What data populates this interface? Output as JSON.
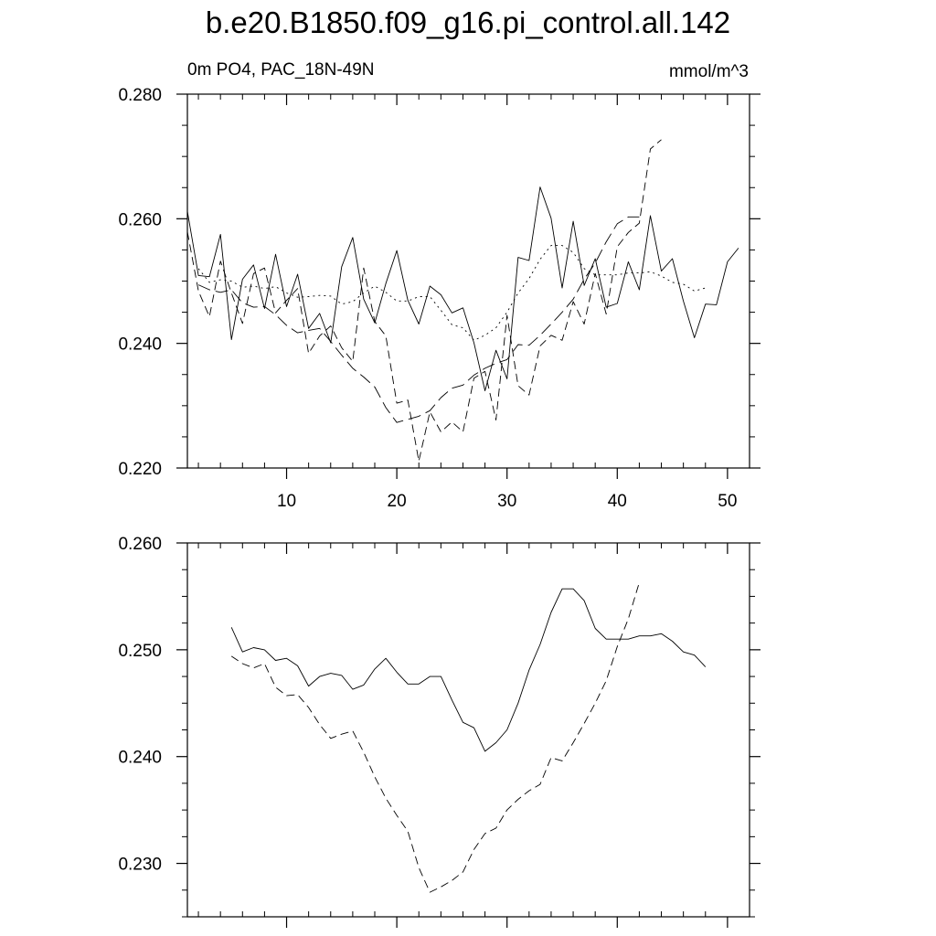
{
  "title": "b.e20.B1850.f09_g16.pi_control.all.142",
  "subtitle_left": "0m PO4, PAC_18N-49N",
  "subtitle_right": "mmol/m^3",
  "chart_data": [
    {
      "type": "line",
      "xlim": [
        1,
        52
      ],
      "ylim": [
        0.22,
        0.28
      ],
      "x_ticks": [
        10,
        20,
        30,
        40,
        50
      ],
      "x_tick_labels": [
        "10",
        "20",
        "30",
        "40",
        "50"
      ],
      "y_ticks": [
        0.22,
        0.24,
        0.26,
        0.28
      ],
      "y_tick_labels": [
        "0.220",
        "0.240",
        "0.260",
        "0.280"
      ],
      "grid": false,
      "series": [
        {
          "style": "solid",
          "x": [
            1,
            2,
            3,
            4,
            5,
            6,
            7,
            8,
            9,
            10,
            11,
            12,
            13,
            14,
            15,
            16,
            17,
            18,
            19,
            20,
            21,
            22,
            23,
            24,
            25,
            26,
            27,
            28,
            29,
            30,
            31,
            32,
            33,
            34,
            35,
            36,
            37,
            38,
            39,
            40,
            41,
            42,
            43,
            44,
            45,
            46,
            47,
            48,
            49,
            50,
            51
          ],
          "values": [
            0.2612,
            0.2509,
            0.2507,
            0.2575,
            0.2406,
            0.2503,
            0.2526,
            0.2456,
            0.2543,
            0.2459,
            0.2511,
            0.2424,
            0.2448,
            0.2401,
            0.2523,
            0.257,
            0.2471,
            0.2433,
            0.2496,
            0.2549,
            0.2469,
            0.2431,
            0.2492,
            0.2478,
            0.2449,
            0.2457,
            0.2401,
            0.2324,
            0.2389,
            0.2343,
            0.2538,
            0.2533,
            0.2651,
            0.2601,
            0.2489,
            0.2596,
            0.2493,
            0.2536,
            0.2458,
            0.2464,
            0.2531,
            0.2486,
            0.2605,
            0.2516,
            0.2536,
            0.2468,
            0.2409,
            0.2463,
            0.2462,
            0.2531,
            0.2553
          ]
        },
        {
          "style": "dashed",
          "x": [
            1,
            2,
            3,
            4,
            5,
            6,
            7,
            8,
            9,
            10,
            11,
            12,
            13,
            14,
            15,
            16,
            17,
            18,
            19,
            20,
            21,
            22,
            23,
            24,
            25,
            26,
            27,
            28,
            29,
            30,
            31,
            32,
            33,
            34,
            35,
            36,
            37,
            38,
            39,
            40,
            41,
            42,
            43,
            44
          ],
          "values": [
            0.2579,
            0.2484,
            0.2443,
            0.2532,
            0.2481,
            0.2432,
            0.2512,
            0.2521,
            0.2449,
            0.2469,
            0.2488,
            0.2384,
            0.2412,
            0.2428,
            0.2393,
            0.2371,
            0.2521,
            0.2435,
            0.2412,
            0.2304,
            0.2309,
            0.2211,
            0.229,
            0.2258,
            0.2274,
            0.2258,
            0.2344,
            0.2355,
            0.2277,
            0.2445,
            0.2332,
            0.2317,
            0.2396,
            0.2413,
            0.2405,
            0.2467,
            0.2431,
            0.2512,
            0.2447,
            0.2555,
            0.2578,
            0.2593,
            0.2712,
            0.2727
          ]
        },
        {
          "style": "dotted",
          "x": [
            2,
            3,
            4,
            5,
            6,
            7,
            8,
            9,
            10,
            11,
            12,
            13,
            14,
            15,
            16,
            17,
            18,
            19,
            20,
            21,
            22,
            23,
            24,
            25,
            26,
            27,
            28,
            29,
            30,
            31,
            32,
            33,
            34,
            35,
            36,
            37,
            38,
            39,
            40,
            41,
            42,
            43,
            44,
            45,
            46,
            47,
            48
          ],
          "values": [
            0.252,
            0.2498,
            0.2502,
            0.25,
            0.249,
            0.2492,
            0.2488,
            0.2491,
            0.2481,
            0.2474,
            0.2475,
            0.2477,
            0.2476,
            0.2463,
            0.2467,
            0.2481,
            0.2492,
            0.2482,
            0.2468,
            0.2468,
            0.2475,
            0.2475,
            0.2453,
            0.243,
            0.2425,
            0.2405,
            0.2413,
            0.2425,
            0.245,
            0.2481,
            0.2504,
            0.2535,
            0.2557,
            0.2557,
            0.2546,
            0.252,
            0.251,
            0.251,
            0.251,
            0.2513,
            0.2513,
            0.2515,
            0.2508,
            0.2498,
            0.2495,
            0.2484,
            0.2489
          ]
        },
        {
          "style": "long-dashed",
          "x": [
            2,
            3,
            4,
            5,
            6,
            7,
            8,
            9,
            10,
            11,
            12,
            13,
            14,
            15,
            16,
            17,
            18,
            19,
            20,
            21,
            22,
            23,
            24,
            25,
            26,
            27,
            28,
            29,
            30,
            31,
            32,
            33,
            34,
            35,
            36,
            37,
            38,
            39,
            40,
            41,
            42
          ],
          "values": [
            0.2494,
            0.2486,
            0.2482,
            0.2486,
            0.2465,
            0.2458,
            0.2459,
            0.2446,
            0.2429,
            0.2417,
            0.2421,
            0.2424,
            0.2403,
            0.2381,
            0.236,
            0.2346,
            0.233,
            0.2297,
            0.2273,
            0.2278,
            0.2283,
            0.2292,
            0.2313,
            0.2328,
            0.2333,
            0.2349,
            0.236,
            0.2368,
            0.2374,
            0.2398,
            0.2397,
            0.2413,
            0.2431,
            0.245,
            0.2471,
            0.2503,
            0.2529,
            0.2563,
            0.2592,
            0.2603,
            0.2603
          ]
        }
      ]
    },
    {
      "type": "line",
      "xlim": [
        1,
        52
      ],
      "ylim": [
        0.225,
        0.26
      ],
      "x_ticks": [
        10,
        20,
        30,
        40,
        50
      ],
      "y_ticks": [
        0.23,
        0.24,
        0.25,
        0.26
      ],
      "y_tick_labels": [
        "0.230",
        "0.240",
        "0.250",
        "0.260"
      ],
      "grid": false,
      "series": [
        {
          "style": "solid",
          "x": [
            5,
            6,
            7,
            8,
            9,
            10,
            11,
            12,
            13,
            14,
            15,
            16,
            17,
            18,
            19,
            20,
            21,
            22,
            23,
            24,
            25,
            26,
            27,
            28,
            29,
            30,
            31,
            32,
            33,
            34,
            35,
            36,
            37,
            38,
            39,
            40,
            41,
            42,
            43,
            44,
            45,
            46,
            47,
            48
          ],
          "values": [
            0.2521,
            0.2498,
            0.2502,
            0.25,
            0.249,
            0.2492,
            0.2485,
            0.2466,
            0.2475,
            0.2478,
            0.2476,
            0.2463,
            0.2467,
            0.2482,
            0.2492,
            0.2479,
            0.2468,
            0.2468,
            0.2475,
            0.2475,
            0.2453,
            0.2432,
            0.2427,
            0.2405,
            0.2413,
            0.2425,
            0.245,
            0.2481,
            0.2505,
            0.2535,
            0.2557,
            0.2557,
            0.2546,
            0.252,
            0.251,
            0.251,
            0.251,
            0.2513,
            0.2513,
            0.2515,
            0.2508,
            0.2498,
            0.2495,
            0.2484
          ]
        },
        {
          "style": "dashed",
          "x": [
            5,
            6,
            7,
            8,
            9,
            10,
            11,
            12,
            13,
            14,
            15,
            16,
            17,
            18,
            19,
            20,
            21,
            22,
            23,
            24,
            25,
            26,
            27,
            28,
            29,
            30,
            31,
            32,
            33,
            34,
            35,
            36,
            37,
            38,
            39,
            40,
            41,
            42
          ],
          "values": [
            0.2494,
            0.2487,
            0.2483,
            0.2487,
            0.2465,
            0.2457,
            0.2458,
            0.2446,
            0.243,
            0.2417,
            0.2421,
            0.2424,
            0.2404,
            0.2381,
            0.2361,
            0.2345,
            0.233,
            0.2296,
            0.2273,
            0.2278,
            0.2284,
            0.2292,
            0.2313,
            0.2328,
            0.2333,
            0.235,
            0.236,
            0.2368,
            0.2374,
            0.2399,
            0.2396,
            0.2413,
            0.2431,
            0.245,
            0.2471,
            0.2503,
            0.2529,
            0.2563
          ]
        }
      ]
    }
  ]
}
